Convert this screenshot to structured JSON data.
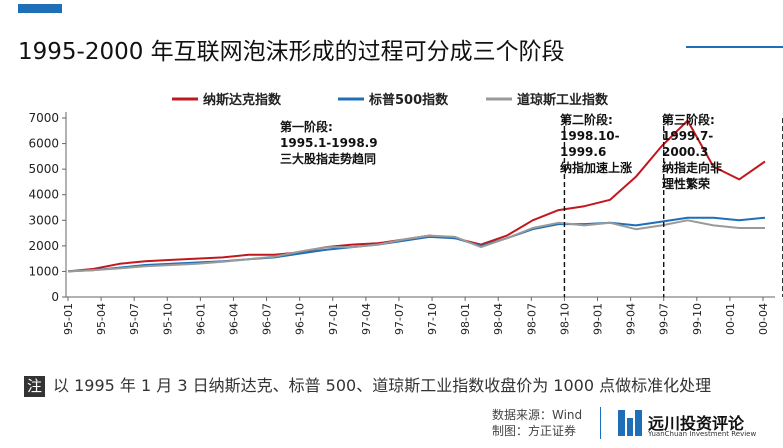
{
  "header": {
    "title": "1995-2000 年互联网泡沫形成的过程可分成三个阶段"
  },
  "chart_data": {
    "type": "line",
    "ylim": [
      0,
      7000
    ],
    "yticks": [
      0,
      1000,
      2000,
      3000,
      4000,
      5000,
      6000,
      7000
    ],
    "x_tick_labels": [
      "95-01",
      "95-04",
      "95-07",
      "95-10",
      "96-01",
      "96-04",
      "96-07",
      "96-10",
      "97-01",
      "97-04",
      "97-07",
      "97-10",
      "98-01",
      "98-04",
      "98-07",
      "98-10",
      "99-01",
      "99-04",
      "99-07",
      "99-10",
      "00-01",
      "00-04"
    ],
    "grid": false,
    "legend_position": "top",
    "series": [
      {
        "name": "纳斯达克指数",
        "color": "#c0181e",
        "values": [
          1000,
          1100,
          1300,
          1400,
          1450,
          1500,
          1550,
          1650,
          1650,
          1750,
          1950,
          2050,
          2100,
          2250,
          2400,
          2300,
          2050,
          2400,
          3000,
          3400,
          3550,
          3800,
          4700,
          5900,
          6900,
          5100,
          4600,
          5300
        ]
      },
      {
        "name": "标普500指数",
        "color": "#1f6fb8",
        "values": [
          1000,
          1050,
          1150,
          1250,
          1300,
          1350,
          1400,
          1480,
          1550,
          1700,
          1850,
          1950,
          2050,
          2200,
          2350,
          2300,
          2000,
          2300,
          2650,
          2850,
          2850,
          2900,
          2800,
          2950,
          3100,
          3100,
          3000,
          3100
        ]
      },
      {
        "name": "道琼斯工业指数",
        "color": "#9a9a9a",
        "values": [
          1000,
          1050,
          1120,
          1200,
          1250,
          1300,
          1380,
          1480,
          1580,
          1780,
          1950,
          1950,
          2050,
          2250,
          2400,
          2350,
          1950,
          2300,
          2700,
          2900,
          2800,
          2900,
          2650,
          2800,
          3000,
          2800,
          2700,
          2700
        ]
      }
    ],
    "phase_dividers": [
      "98-10",
      "99-07",
      "00-03"
    ],
    "annotations": [
      {
        "title": "第一阶段:",
        "lines": [
          "1995.1-1998.9",
          "三大股指走势趋同"
        ]
      },
      {
        "title": "第二阶段:",
        "lines": [
          "1998.10-",
          "1999.6",
          "纳指加速上涨"
        ]
      },
      {
        "title": "第三阶段:",
        "lines": [
          "1999.7-",
          "2000.3",
          "纳指走向非",
          "理性繁荣"
        ]
      }
    ]
  },
  "footnote": {
    "badge": "注",
    "text": "以 1995 年 1 月 3 日纳斯达克、标普 500、道琼斯工业指数收盘价为 1000 点做标准化处理"
  },
  "source": {
    "line1": "数据来源：Wind",
    "line2": "制图：方正证券"
  },
  "brand": {
    "name": "远川投资评论",
    "subtitle": "YuanChuan Investment Review"
  }
}
